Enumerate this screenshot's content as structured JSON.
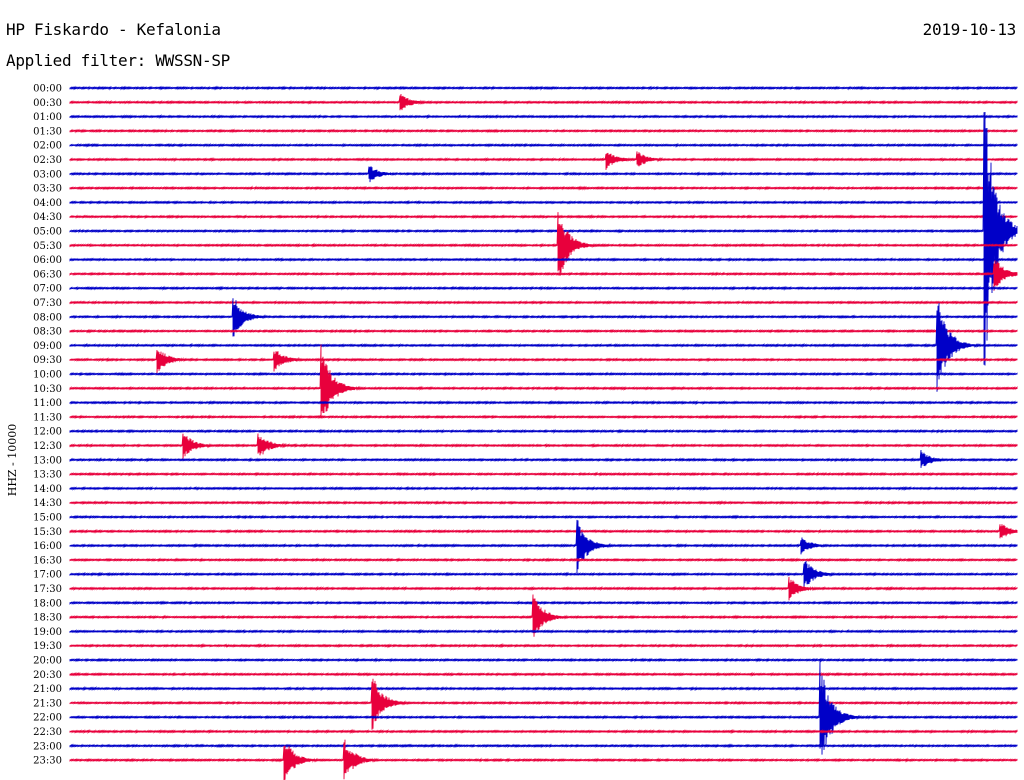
{
  "header": {
    "station": "HP Fiskardo - Kefalonia",
    "date": "2019-10-13",
    "filter": "Applied filter: WWSSN-SP"
  },
  "chart_data": {
    "type": "line",
    "title": "HP Fiskardo - Kefalonia",
    "ylabel": "HHZ - 10000",
    "rows": [
      "00:00",
      "00:30",
      "01:00",
      "01:30",
      "02:00",
      "02:30",
      "03:00",
      "03:30",
      "04:00",
      "04:30",
      "05:00",
      "05:30",
      "06:00",
      "06:30",
      "07:00",
      "07:30",
      "08:00",
      "08:30",
      "09:00",
      "09:30",
      "10:00",
      "10:30",
      "11:00",
      "11:30",
      "12:00",
      "12:30",
      "13:00",
      "13:30",
      "14:00",
      "14:30",
      "15:00",
      "15:30",
      "16:00",
      "16:30",
      "17:00",
      "17:30",
      "18:00",
      "18:30",
      "19:00",
      "19:30",
      "20:00",
      "20:30",
      "21:00",
      "21:30",
      "22:00",
      "22:30",
      "23:00",
      "23:30"
    ],
    "colors": [
      "#0000c8",
      "#e8003c"
    ],
    "events": [
      {
        "row": "00:30",
        "minute": 10.5,
        "amp": 0.6
      },
      {
        "row": "02:30",
        "minute": 17.0,
        "amp": 0.7
      },
      {
        "row": "02:30",
        "minute": 18.0,
        "amp": 0.6
      },
      {
        "row": "03:00",
        "minute": 9.5,
        "amp": 0.6
      },
      {
        "row": "05:00",
        "minute": 29.0,
        "amp": 9.0
      },
      {
        "row": "05:30",
        "minute": 15.5,
        "amp": 2.5
      },
      {
        "row": "06:30",
        "minute": 29.3,
        "amp": 1.2
      },
      {
        "row": "08:00",
        "minute": 5.2,
        "amp": 1.4
      },
      {
        "row": "09:00",
        "minute": 27.5,
        "amp": 3.5
      },
      {
        "row": "09:30",
        "minute": 2.8,
        "amp": 0.9
      },
      {
        "row": "09:30",
        "minute": 6.5,
        "amp": 0.8
      },
      {
        "row": "10:30",
        "minute": 8.0,
        "amp": 2.8
      },
      {
        "row": "12:30",
        "minute": 3.6,
        "amp": 1.0
      },
      {
        "row": "12:30",
        "minute": 6.0,
        "amp": 0.9
      },
      {
        "row": "13:00",
        "minute": 27.0,
        "amp": 0.6
      },
      {
        "row": "15:30",
        "minute": 29.5,
        "amp": 0.6
      },
      {
        "row": "16:00",
        "minute": 16.1,
        "amp": 1.8
      },
      {
        "row": "16:00",
        "minute": 23.2,
        "amp": 0.6
      },
      {
        "row": "17:00",
        "minute": 23.3,
        "amp": 1.0
      },
      {
        "row": "17:30",
        "minute": 22.8,
        "amp": 0.8
      },
      {
        "row": "18:30",
        "minute": 14.7,
        "amp": 1.6
      },
      {
        "row": "21:30",
        "minute": 9.6,
        "amp": 1.9
      },
      {
        "row": "22:00",
        "minute": 23.8,
        "amp": 3.5
      },
      {
        "row": "23:30",
        "minute": 6.8,
        "amp": 1.6
      },
      {
        "row": "23:30",
        "minute": 8.7,
        "amp": 1.5
      }
    ]
  }
}
